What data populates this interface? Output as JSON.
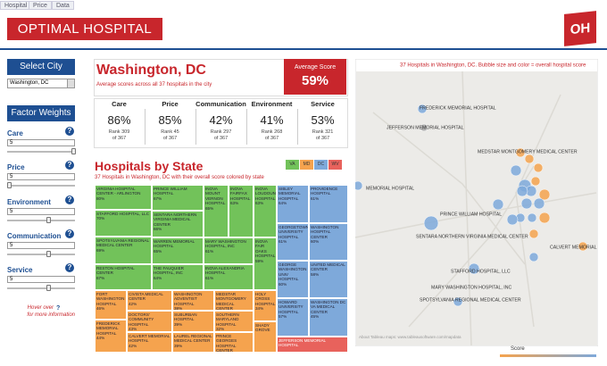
{
  "tabs": [
    "Hospital",
    "Price",
    "Data"
  ],
  "header": {
    "title": "OPTIMAL HOSPITAL",
    "logo": "OH"
  },
  "sidebar": {
    "city_title": "Select City",
    "city": "Washington, DC",
    "weights_title": "Factor Weights",
    "help_icon": "?",
    "factors": [
      {
        "label": "Care",
        "value": "5"
      },
      {
        "label": "Price",
        "value": "5"
      },
      {
        "label": "Environment",
        "value": "5"
      },
      {
        "label": "Communication",
        "value": "5"
      },
      {
        "label": "Service",
        "value": "5"
      }
    ],
    "help_before": "Hover over",
    "help_after": "for more information"
  },
  "summary": {
    "city": "Washington, DC",
    "subtitle": "Average scores across all 37 hospitals in the city",
    "avg_label": "Average Score",
    "avg_value": "59%"
  },
  "scores": [
    {
      "name": "Care",
      "value": "86%",
      "rank": "Rank 309",
      "of": "of 367"
    },
    {
      "name": "Price",
      "value": "85%",
      "rank": "Rank 45",
      "of": "of 367"
    },
    {
      "name": "Communication",
      "value": "42%",
      "rank": "Rank 297",
      "of": "of 367"
    },
    {
      "name": "Environment",
      "value": "41%",
      "rank": "Rank 268",
      "of": "of 367"
    },
    {
      "name": "Service",
      "value": "53%",
      "rank": "Rank 321",
      "of": "of 367"
    }
  ],
  "treemap": {
    "title": "Hospitals by State",
    "subtitle": "37 Hospitals in Washington, DC with their overall score colored by state",
    "legend": [
      {
        "state": "VA",
        "color": "#72c25a"
      },
      {
        "state": "MD",
        "color": "#f5a34e"
      },
      {
        "state": "DC",
        "color": "#7ea9da"
      },
      {
        "state": "WV",
        "color": "#e8625c"
      }
    ],
    "tiles": [
      {
        "name": "VIRGINIA HOSPITAL CENTER - ARLINGTON",
        "score": "80%",
        "state": "VA"
      },
      {
        "name": "STAFFORD HOSPITAL, LLC",
        "score": "70%",
        "state": "VA"
      },
      {
        "name": "SPOTSYLVANIA REGIONAL MEDICAL CENTER",
        "score": "69%",
        "state": "VA"
      },
      {
        "name": "RESTON HOSPITAL CENTER",
        "score": "67%",
        "state": "VA"
      },
      {
        "name": "PRINCE WILLIAM HOSPITAL",
        "score": "67%",
        "state": "VA"
      },
      {
        "name": "SENTARA NORTHERN VIRGINIA MEDICAL CENTER",
        "score": "66%",
        "state": "VA"
      },
      {
        "name": "WARREN MEMORIAL HOSPITAL",
        "score": "65%",
        "state": "VA"
      },
      {
        "name": "THE FAUQUIER HOSPITAL, INC",
        "score": "64%",
        "state": "VA"
      },
      {
        "name": "INOVA MOUNT VERNON HOSPITAL",
        "score": "65%",
        "state": "VA"
      },
      {
        "name": "INOVA FAIRFAX HOSPITAL",
        "score": "63%",
        "state": "VA"
      },
      {
        "name": "INOVA LOUDOUN HOSPITAL",
        "score": "63%",
        "state": "VA"
      },
      {
        "name": "MARY WASHINGTON HOSPITAL, INC",
        "score": "61%",
        "state": "VA"
      },
      {
        "name": "INOVA ALEXANDRIA HOSPITAL",
        "score": "61%",
        "state": "VA"
      },
      {
        "name": "INOVA FAIR OAKS HOSPITAL",
        "score": "59%",
        "state": "VA"
      },
      {
        "name": "SIBLEY MEMORIAL HOSPITAL",
        "score": "64%",
        "state": "DC"
      },
      {
        "name": "PROVIDENCE HOSPITAL",
        "score": "61%",
        "state": "DC"
      },
      {
        "name": "GEORGETOWN UNIVERSITY HOSPITAL",
        "score": "61%",
        "state": "DC"
      },
      {
        "name": "WASHINGTON HOSPITAL CENTER",
        "score": "60%",
        "state": "DC"
      },
      {
        "name": "GEORGE WASHINGTON UNIV HOSPITAL",
        "score": "60%",
        "state": "DC"
      },
      {
        "name": "UNITED MEDICAL CENTER",
        "score": "58%",
        "state": "DC"
      },
      {
        "name": "HOWARD UNIVERSITY HOSPITAL",
        "score": "57%",
        "state": "DC"
      },
      {
        "name": "WASHINGTON DC VA MEDICAL CENTER",
        "score": "45%",
        "state": "DC"
      },
      {
        "name": "FORT WASHINGTON HOSPITAL",
        "score": "46%",
        "state": "MD"
      },
      {
        "name": "FREDERICK MEMORIAL HOSPITAL",
        "score": "44%",
        "state": "MD"
      },
      {
        "name": "CIVISTA MEDICAL CENTER",
        "score": "42%",
        "state": "MD"
      },
      {
        "name": "DOCTORS' COMMUNITY HOSPITAL",
        "score": "43%",
        "state": "MD"
      },
      {
        "name": "CALVERT MEMORIAL HOSPITAL",
        "score": "42%",
        "state": "MD"
      },
      {
        "name": "WASHINGTON ADVENTIST HOSPITAL",
        "score": "38%",
        "state": "MD"
      },
      {
        "name": "SUBURBAN HOSPITAL",
        "score": "39%",
        "state": "MD"
      },
      {
        "name": "LAUREL REGIONAL MEDICAL CENTER",
        "score": "39%",
        "state": "MD"
      },
      {
        "name": "MEDSTAR MONTGOMERY MEDICAL CENTER",
        "score": "35%",
        "state": "MD"
      },
      {
        "name": "SOUTHERN MARYLAND HOSPITAL",
        "score": "32%",
        "state": "MD"
      },
      {
        "name": "PRINCE GEORGES HOSPITAL CENTER",
        "score": "32%",
        "state": "MD"
      },
      {
        "name": "HOLY CROSS HOSPITAL",
        "score": "34%",
        "state": "MD"
      },
      {
        "name": "SHADY GROVE",
        "state": "MD"
      },
      {
        "name": "JEFFERSON MEMORIAL HOSPITAL",
        "state": "WV"
      }
    ]
  },
  "map": {
    "title": "37 Hospitals in Washington, DC.  Bubble size and color = overall hospital score",
    "labels": [
      "FREDERICK MEMORIAL HOSPITAL",
      "JEFFERSON MEMORIAL HOSPITAL",
      "MEDSTAR MONTGOMERY MEDICAL CENTER",
      "MEMORIAL HOSPITAL",
      "PRINCE WILLIAM HOSPITAL",
      "SENTARA NORTHERN VIRGINIA MEDICAL CENTER",
      "CALVERT MEMORIAL HOSPITAL",
      "STAFFORD HOSPITAL, LLC",
      "MARY WASHINGTON HOSPITAL, INC",
      "SPOTSYLVANIA REGIONAL MEDICAL CENTER"
    ],
    "attribution": "About Tableau maps: www.tableausoftware.com/mapdata",
    "legend_title": "Score"
  }
}
